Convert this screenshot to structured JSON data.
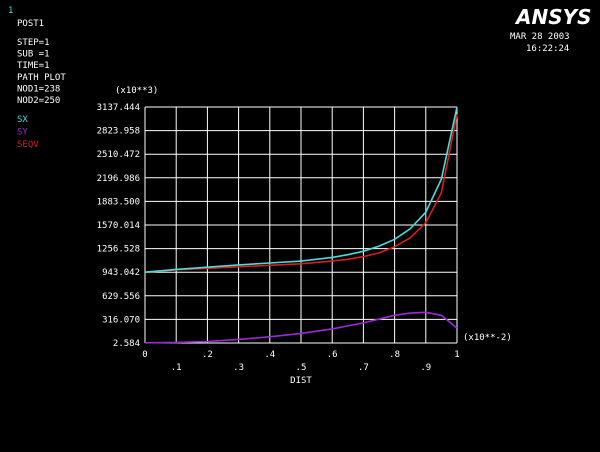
{
  "header": {
    "window_number": "1",
    "title": "POST1",
    "info_lines": [
      "STEP=1",
      "SUB =1",
      "TIME=1",
      "PATH PLOT",
      "NOD1=238",
      "NOD2=250"
    ],
    "date": "MAR 28 2003",
    "time": "16:22:24",
    "logo_text": "ANSYS"
  },
  "colors": {
    "background": "#000000",
    "text": "#ffffff",
    "grid": "#ffffff",
    "SX": "#4fd9d9",
    "SY": "#9a2ad8",
    "SEQV": "#d41f1f",
    "window_number": "#4fd9d9"
  },
  "chart_data": {
    "type": "line",
    "xlabel": "DIST",
    "x_multiplier_label": "(x10**-2)",
    "y_multiplier_label": "(x10**3)",
    "xlim": [
      0,
      1
    ],
    "ylim": [
      2.584,
      3137.444
    ],
    "grid": true,
    "legend_position": "top-left",
    "y_ticks": [
      "2.584",
      "316.070",
      "629.556",
      "943.042",
      "1256.528",
      "1570.014",
      "1883.500",
      "2196.986",
      "2510.472",
      "2823.958",
      "3137.444"
    ],
    "x_ticks_top": [
      "0",
      ".2",
      ".4",
      ".6",
      ".8",
      "1"
    ],
    "x_ticks_bottom": [
      ".1",
      ".3",
      ".5",
      ".7",
      ".9"
    ],
    "x": [
      0,
      0.1,
      0.2,
      0.3,
      0.4,
      0.5,
      0.6,
      0.65,
      0.7,
      0.75,
      0.8,
      0.85,
      0.9,
      0.95,
      1.0
    ],
    "series": [
      {
        "name": "SX",
        "values": [
          943,
          980,
          1010,
          1040,
          1065,
          1090,
          1140,
          1175,
          1220,
          1290,
          1380,
          1520,
          1740,
          2180,
          3137
        ]
      },
      {
        "name": "SY",
        "values": [
          5,
          10,
          22,
          50,
          85,
          130,
          190,
          230,
          270,
          320,
          370,
          400,
          410,
          370,
          200
        ]
      },
      {
        "name": "SEQV",
        "values": [
          943,
          975,
          995,
          1015,
          1035,
          1055,
          1090,
          1115,
          1150,
          1200,
          1280,
          1400,
          1600,
          2000,
          3040
        ]
      }
    ]
  }
}
